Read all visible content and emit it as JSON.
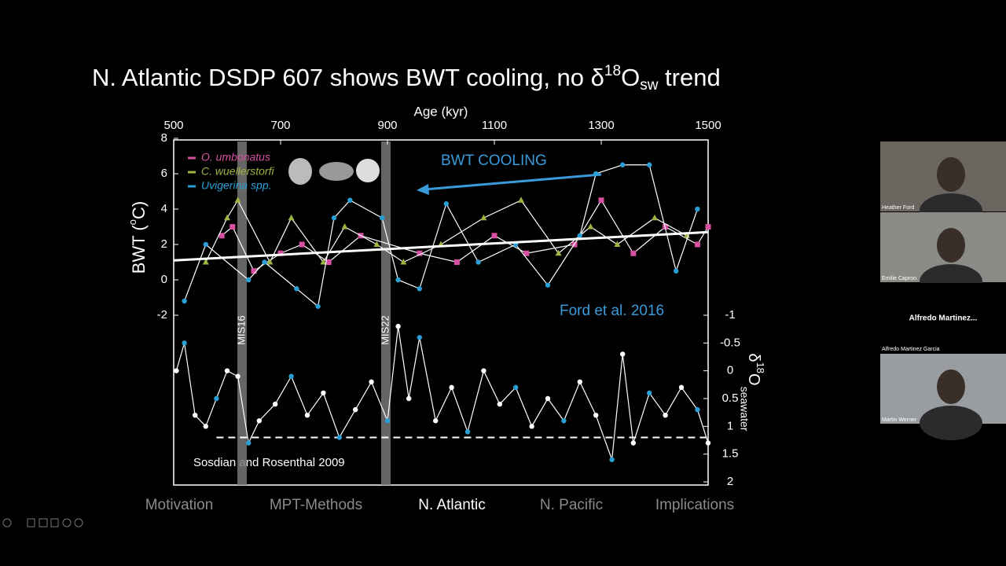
{
  "slide": {
    "title_parts": [
      "N. Atlantic DSDP 607 shows BWT cooling, no δ",
      "18",
      "O",
      "sw",
      " trend"
    ],
    "annotations": [
      "BWT COOLING",
      "Ford et al. 2016",
      "Sosdian and Rosenthal 2009"
    ]
  },
  "chart_data": {
    "type": "line",
    "x_label": "Age (kyr)",
    "y_label_parts": [
      "BWT (",
      "o",
      "C)"
    ],
    "y2_label_parts": [
      "δ",
      "18",
      "O",
      "seawater"
    ],
    "xlim": [
      500,
      1500
    ],
    "xticks": [
      500,
      700,
      900,
      1100,
      1300,
      1500
    ],
    "ylim": [
      -2,
      8
    ],
    "yticks": [
      -2,
      0,
      2,
      4,
      6,
      8
    ],
    "y2lim": [
      -1,
      2
    ],
    "y2ticks": [
      -1,
      -0.5,
      0,
      0.5,
      1,
      1.5,
      2
    ],
    "bands": [
      {
        "label": "MIS16",
        "x": 628
      },
      {
        "label": "MIS22",
        "x": 897
      }
    ],
    "series": [
      {
        "name": "O. umbonatus",
        "color": "#d64fa0",
        "marker": "square",
        "x": [
          590,
          610,
          650,
          700,
          740,
          790,
          850,
          960,
          1030,
          1100,
          1160,
          1250,
          1300,
          1360,
          1420,
          1480,
          1500
        ],
        "values": [
          2.5,
          3,
          0.5,
          1.5,
          2,
          1,
          2.5,
          1.5,
          1,
          2.5,
          1.5,
          2,
          4.5,
          1.5,
          3,
          2,
          3
        ]
      },
      {
        "name": "C. wuellerstorfi",
        "color": "#9bb542",
        "marker": "triangle",
        "x": [
          560,
          600,
          620,
          680,
          720,
          780,
          820,
          880,
          930,
          1000,
          1080,
          1150,
          1220,
          1280,
          1330,
          1400,
          1460
        ],
        "values": [
          1,
          3.5,
          4.5,
          1,
          3.5,
          1,
          3,
          2,
          1,
          2,
          3.5,
          4.5,
          1.5,
          3,
          2,
          3.5,
          2.5
        ]
      },
      {
        "name": "Uvigerina spp.",
        "color": "#2a9fd6",
        "marker": "circle",
        "x": [
          520,
          560,
          640,
          670,
          730,
          770,
          800,
          830,
          890,
          920,
          960,
          1010,
          1070,
          1140,
          1200,
          1260,
          1290,
          1340,
          1390,
          1440,
          1480
        ],
        "values": [
          -1.2,
          2,
          0,
          1,
          -0.5,
          -1.5,
          3.5,
          4.5,
          3.5,
          0,
          -0.5,
          4.3,
          1,
          2,
          -0.3,
          2.5,
          6,
          6.5,
          6.5,
          0.5,
          4
        ]
      },
      {
        "color": "#ffffff",
        "marker": "circle",
        "axis": "y2",
        "x": [
          505,
          520,
          540,
          560,
          580,
          600,
          620,
          640,
          660,
          690,
          720,
          750,
          780,
          810,
          840,
          870,
          900,
          920,
          940,
          960,
          990,
          1020,
          1050,
          1080,
          1110,
          1140,
          1170,
          1200,
          1230,
          1260,
          1290,
          1320,
          1340,
          1360,
          1390,
          1420,
          1450,
          1480,
          1500
        ],
        "values": [
          0,
          -0.5,
          0.8,
          1,
          0.5,
          0,
          0.1,
          1.3,
          0.9,
          0.6,
          0.1,
          0.8,
          0.4,
          1.2,
          0.7,
          0.2,
          0.9,
          -0.8,
          0.5,
          -0.6,
          0.9,
          0.3,
          1.1,
          0,
          0.6,
          0.3,
          1,
          0.5,
          0.9,
          0.2,
          0.8,
          1.6,
          -0.3,
          1.3,
          0.4,
          0.8,
          0.3,
          0.7,
          1.3
        ]
      }
    ],
    "trend": {
      "x": [
        500,
        1500
      ],
      "values": [
        1.1,
        2.7
      ],
      "color": "#ffffff"
    },
    "reference": {
      "x": [
        580,
        1500
      ],
      "value": 1.2,
      "axis": "y2"
    }
  },
  "nav": {
    "items": [
      "Motivation",
      "MPT-Methods",
      "N. Atlantic",
      "N. Pacific",
      "Implications"
    ],
    "active": 2
  },
  "participants": {
    "names": [
      "Heather Ford",
      "Emilie Capron",
      "Alfredo Martinez Garcia",
      "Martin Werner"
    ],
    "placeholder": "Alfredo  Martinez..."
  }
}
